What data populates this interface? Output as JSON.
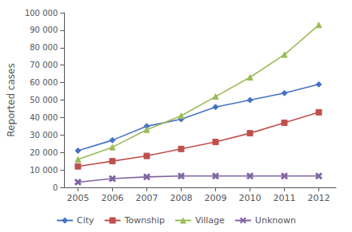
{
  "chart_data": {
    "type": "line",
    "ylabel": "Reported cases",
    "x": [
      2005,
      2006,
      2007,
      2008,
      2009,
      2010,
      2011,
      2012
    ],
    "series": [
      {
        "name": "City",
        "color": "#4472c4",
        "marker": "diamond",
        "values": [
          21000,
          27000,
          35000,
          39000,
          46000,
          50000,
          54000,
          59000
        ]
      },
      {
        "name": "Township",
        "color": "#c0504d",
        "marker": "square",
        "values": [
          12000,
          15000,
          18000,
          22000,
          26000,
          31000,
          37000,
          43000
        ]
      },
      {
        "name": "Village",
        "color": "#9bbb59",
        "marker": "triangle",
        "values": [
          16000,
          23000,
          33000,
          41000,
          52000,
          63000,
          76000,
          93000
        ]
      },
      {
        "name": "Unknown",
        "color": "#8064a2",
        "marker": "x",
        "values": [
          3000,
          5000,
          6000,
          6500,
          6500,
          6500,
          6500,
          6500
        ]
      }
    ],
    "xlim": [
      2004.6,
      2012.5
    ],
    "xticks": [
      2005,
      2006,
      2007,
      2008,
      2009,
      2010,
      2011,
      2012
    ],
    "ylim": [
      0,
      100000
    ],
    "yticks": [
      0,
      {
        "value": 10000,
        "label": "10 000"
      },
      {
        "value": 20000,
        "label": "20 000"
      },
      {
        "value": 30000,
        "label": "30 000"
      },
      {
        "value": 40000,
        "label": "40 000"
      },
      {
        "value": 50000,
        "label": "50 000"
      },
      {
        "value": 60000,
        "label": "60 000"
      },
      {
        "value": 70000,
        "label": "70 000"
      },
      {
        "value": 80000,
        "label": "80 000"
      },
      {
        "value": 90000,
        "label": "90 000"
      },
      {
        "value": 100000,
        "label": "100 000"
      }
    ],
    "grid": false,
    "legend": "bottom"
  }
}
